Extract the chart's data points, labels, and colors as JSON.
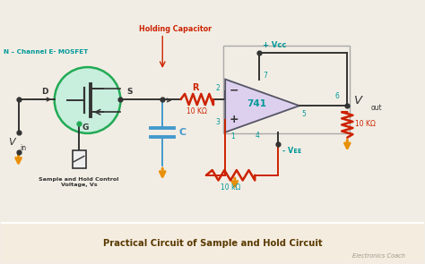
{
  "title": "Practical Circuit of Sample and Hold Circuit",
  "watermark": "Electronics Coach",
  "bg_color": "#f2ede4",
  "circuit_bg": "#f2ede4",
  "caption_bg": "#f5ece0",
  "title_color": "#5a3a00",
  "colors": {
    "green": "#22aa55",
    "teal": "#009999",
    "dark_red": "#cc2200",
    "orange": "#e8900a",
    "blue": "#4499cc",
    "black": "#222222",
    "purple": "#8855aa",
    "mosfet_fill": "#c8eedd",
    "mosfet_edge": "#22aa55",
    "wire": "#333333",
    "opamp_fill": "#ddd0ee",
    "opamp_edge": "#555566"
  },
  "labels": {
    "mosfet": "N – Channel E- MOSFET",
    "holding_cap": "Holding Capacitor",
    "D": "D",
    "S": "S",
    "G": "G",
    "Vcc": "+ Vcc",
    "Vee": "- Vᴇᴇ",
    "R_label": "R",
    "R_value": "10 KΩ",
    "C_label": "C",
    "opamp_label": "741",
    "pin2": "2",
    "pin3": "3",
    "pin1": "1",
    "pin4": "4",
    "pin5": "5",
    "pin6": "6",
    "pin7": "7",
    "fb_R": "10 KΩ",
    "bot_R": "10 kΩ",
    "ctrl_label": "Sample and Hold Control\nVoltage, Vs"
  }
}
